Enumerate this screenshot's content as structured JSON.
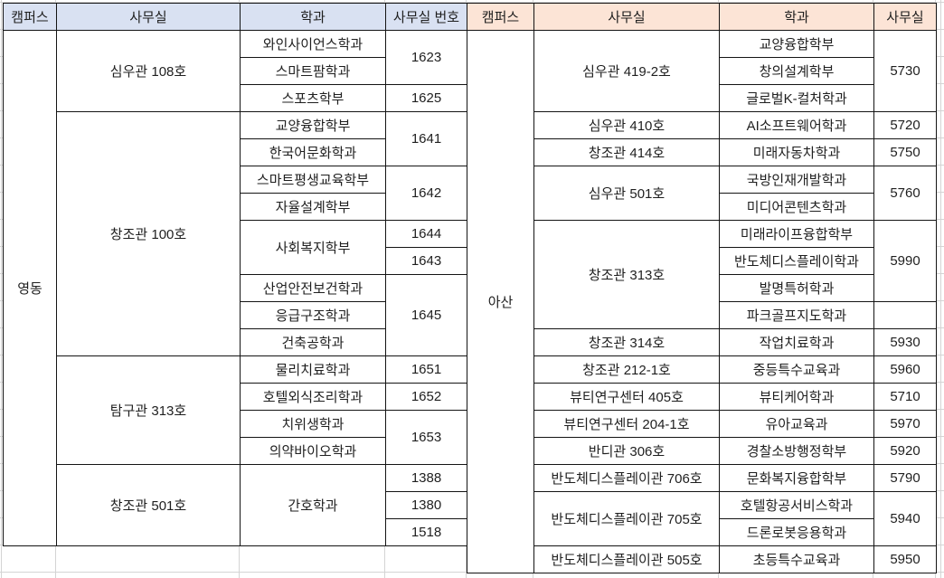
{
  "sheet": {
    "gridline_color": "#d4d4d4",
    "table_border_color": "#141414",
    "text_color": "#1f1f1f"
  },
  "tables": [
    {
      "id": "yeongdong",
      "campus": "영동",
      "header_bg": "#d9e1f2",
      "headers": [
        "캠퍼스",
        "사무실",
        "학과",
        "사무실 번호"
      ],
      "rows": [
        [
          {
            "n": "campus",
            "t": "영동",
            "rs": 19
          },
          {
            "n": "office",
            "t": "심우관 108호",
            "rs": 3
          },
          {
            "n": "department",
            "t": "와인사이언스학과"
          },
          {
            "n": "office-number",
            "t": "1623",
            "rs": 2
          }
        ],
        [
          {
            "n": "department",
            "t": "스마트팜학과"
          }
        ],
        [
          {
            "n": "department",
            "t": "스포츠학부"
          },
          {
            "n": "office-number",
            "t": "1625"
          }
        ],
        [
          {
            "n": "office",
            "t": "창조관 100호",
            "rs": 9
          },
          {
            "n": "department",
            "t": "교양융합학부"
          },
          {
            "n": "office-number",
            "t": "1641",
            "rs": 2
          }
        ],
        [
          {
            "n": "department",
            "t": "한국어문화학과"
          }
        ],
        [
          {
            "n": "department",
            "t": "스마트평생교육학부"
          },
          {
            "n": "office-number",
            "t": "1642",
            "rs": 2
          }
        ],
        [
          {
            "n": "department",
            "t": "자율설계학부"
          }
        ],
        [
          {
            "n": "department",
            "t": "사회복지학부",
            "rs": 2
          },
          {
            "n": "office-number",
            "t": "1644"
          }
        ],
        [
          {
            "n": "office-number",
            "t": "1643"
          }
        ],
        [
          {
            "n": "department",
            "t": "산업안전보건학과"
          },
          {
            "n": "office-number",
            "t": "1645",
            "rs": 3
          }
        ],
        [
          {
            "n": "department",
            "t": "응급구조학과"
          }
        ],
        [
          {
            "n": "department",
            "t": "건축공학과"
          }
        ],
        [
          {
            "n": "office",
            "t": "탐구관 313호",
            "rs": 4
          },
          {
            "n": "department",
            "t": "물리치료학과"
          },
          {
            "n": "office-number",
            "t": "1651"
          }
        ],
        [
          {
            "n": "department",
            "t": "호텔외식조리학과"
          },
          {
            "n": "office-number",
            "t": "1652"
          }
        ],
        [
          {
            "n": "department",
            "t": "치위생학과"
          },
          {
            "n": "office-number",
            "t": "1653",
            "rs": 2
          }
        ],
        [
          {
            "n": "department",
            "t": "의약바이오학과"
          }
        ],
        [
          {
            "n": "office",
            "t": "창조관 501호",
            "rs": 3
          },
          {
            "n": "department",
            "t": "간호학과",
            "rs": 3
          },
          {
            "n": "office-number",
            "t": "1388"
          }
        ],
        [
          {
            "n": "office-number",
            "t": "1380"
          }
        ],
        [
          {
            "n": "office-number",
            "t": "1518"
          }
        ]
      ]
    },
    {
      "id": "asan",
      "campus": "아산",
      "header_bg": "#fce4d6",
      "headers": [
        "캠퍼스",
        "사무실",
        "학과",
        "사무실"
      ],
      "rows": [
        [
          {
            "n": "campus",
            "t": "아산",
            "rs": 20
          },
          {
            "n": "office",
            "t": "심우관 419-2호",
            "rs": 3
          },
          {
            "n": "department",
            "t": "교양융합학부"
          },
          {
            "n": "office-number",
            "t": "5730",
            "rs": 3
          }
        ],
        [
          {
            "n": "department",
            "t": "창의설계학부"
          }
        ],
        [
          {
            "n": "department",
            "t": "글로벌K-컬처학과"
          }
        ],
        [
          {
            "n": "office",
            "t": "심우관 410호"
          },
          {
            "n": "department",
            "t": "AI소프트웨어학과"
          },
          {
            "n": "office-number",
            "t": "5720"
          }
        ],
        [
          {
            "n": "office",
            "t": "창조관 414호"
          },
          {
            "n": "department",
            "t": "미래자동차학과"
          },
          {
            "n": "office-number",
            "t": "5750"
          }
        ],
        [
          {
            "n": "office",
            "t": "심우관 501호",
            "rs": 2
          },
          {
            "n": "department",
            "t": "국방인재개발학과"
          },
          {
            "n": "office-number",
            "t": "5760",
            "rs": 2
          }
        ],
        [
          {
            "n": "department",
            "t": "미디어콘텐츠학과"
          }
        ],
        [
          {
            "n": "office",
            "t": "창조관 313호",
            "rs": 4
          },
          {
            "n": "department",
            "t": "미래라이프융합학부"
          },
          {
            "n": "office-number",
            "t": "5990",
            "rs": 3
          }
        ],
        [
          {
            "n": "department",
            "t": "반도체디스플레이학과"
          }
        ],
        [
          {
            "n": "department",
            "t": "발명특허학과"
          }
        ],
        [
          {
            "n": "department",
            "t": "파크골프지도학과"
          },
          {
            "n": "office-number",
            "t": ""
          }
        ],
        [
          {
            "n": "office",
            "t": "창조관 314호"
          },
          {
            "n": "department",
            "t": "작업치료학과"
          },
          {
            "n": "office-number",
            "t": "5930"
          }
        ],
        [
          {
            "n": "office",
            "t": "창조관 212-1호"
          },
          {
            "n": "department",
            "t": "중등특수교육과"
          },
          {
            "n": "office-number",
            "t": "5960"
          }
        ],
        [
          {
            "n": "office",
            "t": "뷰티연구센터 405호"
          },
          {
            "n": "department",
            "t": "뷰티케어학과"
          },
          {
            "n": "office-number",
            "t": "5710"
          }
        ],
        [
          {
            "n": "office",
            "t": "뷰티연구센터 204-1호"
          },
          {
            "n": "department",
            "t": "유아교육과"
          },
          {
            "n": "office-number",
            "t": "5970"
          }
        ],
        [
          {
            "n": "office",
            "t": "반디관 306호"
          },
          {
            "n": "department",
            "t": "경찰소방행정학부"
          },
          {
            "n": "office-number",
            "t": "5920"
          }
        ],
        [
          {
            "n": "office",
            "t": "반도체디스플레이관 706호"
          },
          {
            "n": "department",
            "t": "문화복지융합학부"
          },
          {
            "n": "office-number",
            "t": "5790"
          }
        ],
        [
          {
            "n": "office",
            "t": "반도체디스플레이관 705호",
            "rs": 2
          },
          {
            "n": "department",
            "t": "호텔항공서비스학과"
          },
          {
            "n": "office-number",
            "t": "5940",
            "rs": 2
          }
        ],
        [
          {
            "n": "department",
            "t": "드론로봇응용학과"
          }
        ],
        [
          {
            "n": "office",
            "t": "반도체디스플레이관 505호"
          },
          {
            "n": "department",
            "t": "초등특수교육과"
          },
          {
            "n": "office-number",
            "t": "5950"
          }
        ]
      ]
    }
  ]
}
